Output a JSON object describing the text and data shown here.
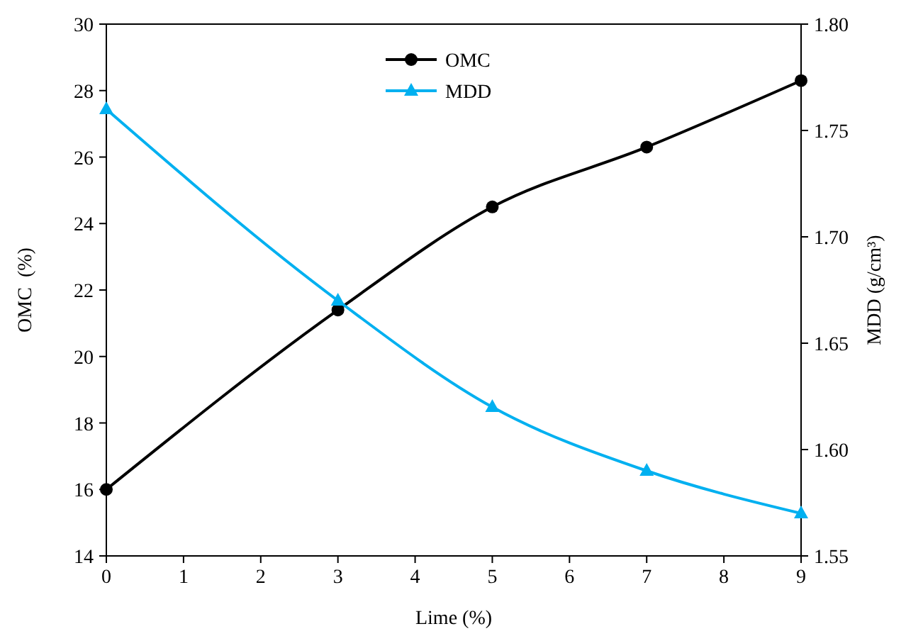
{
  "chart_data": {
    "type": "line",
    "xlabel": "Lime (%)",
    "ylabel": "OMC  (%)",
    "y2label": "MDD (g/cm³)",
    "x": [
      0,
      3,
      5,
      7,
      9
    ],
    "xlim": [
      0,
      9
    ],
    "xticks": [
      0,
      1,
      2,
      3,
      4,
      5,
      6,
      7,
      8,
      9
    ],
    "ylim": [
      14,
      30
    ],
    "yticks": [
      14,
      16,
      18,
      20,
      22,
      24,
      26,
      28,
      30
    ],
    "y2lim": [
      1.55,
      1.8
    ],
    "y2ticks": [
      {
        "value": 1.55,
        "label": "1.55"
      },
      {
        "value": 1.6,
        "label": "1.60"
      },
      {
        "value": 1.65,
        "label": "1.65"
      },
      {
        "value": 1.7,
        "label": "1.70"
      },
      {
        "value": 1.75,
        "label": "1.75"
      },
      {
        "value": 1.8,
        "label": "1.80"
      }
    ],
    "grid": false,
    "legend": "top",
    "line_style": "solid",
    "series": [
      {
        "name": "OMC",
        "color": "#000000",
        "marker": "circle",
        "values": [
          16,
          21.4,
          24.5,
          26.3,
          28.3
        ]
      },
      {
        "name": "MDD",
        "color": "#00b0f0",
        "marker": "triangle",
        "axis": "y2",
        "values": [
          1.76,
          1.67,
          1.62,
          1.59,
          1.57
        ]
      }
    ]
  }
}
